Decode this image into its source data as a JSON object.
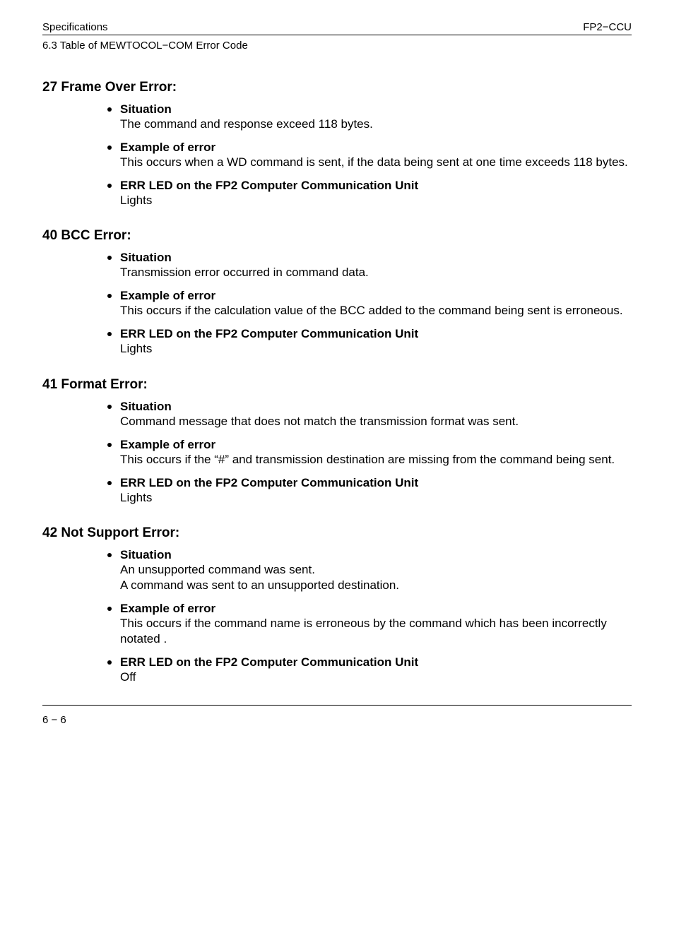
{
  "header": {
    "left": "Specifications",
    "right": "FP2−CCU"
  },
  "subheader": "6.3    Table of MEWTOCOL−COM Error Code",
  "errors": [
    {
      "code": "27",
      "name": "Frame Over Error:",
      "sections": [
        {
          "label": "Situation",
          "body": "The command and response exceed 118 bytes."
        },
        {
          "label": "Example of error",
          "body": "This occurs when a WD command is sent, if the data being sent at one time exceeds 118 bytes."
        },
        {
          "label": "ERR LED on the FP2 Computer Communication Unit",
          "body": "Lights"
        }
      ]
    },
    {
      "code": "40",
      "name": "BCC Error:",
      "sections": [
        {
          "label": "Situation",
          "body": "Transmission error occurred in command data."
        },
        {
          "label": "Example of error",
          "body": "This occurs if the calculation value of the BCC added to the command being sent is erroneous."
        },
        {
          "label": "ERR LED on the FP2 Computer Communication Unit",
          "body": "Lights"
        }
      ]
    },
    {
      "code": "41",
      "name": "Format Error:",
      "sections": [
        {
          "label": "Situation",
          "body": "Command message that does not match the transmission format was sent."
        },
        {
          "label": "Example of error",
          "body": "This occurs if the “#” and transmission destination are missing from the command being sent."
        },
        {
          "label": "ERR LED on the FP2 Computer Communication Unit",
          "body": "Lights"
        }
      ]
    },
    {
      "code": "42",
      "name": "Not Support Error:",
      "sections": [
        {
          "label": "Situation",
          "body": "An unsupported command was sent.\nA command was sent to an unsupported destination."
        },
        {
          "label": "Example of error",
          "body": "This occurs if the command name is erroneous by the command which has been incorrectly notated ."
        },
        {
          "label": "ERR LED on the FP2 Computer Communication Unit",
          "body": "Off"
        }
      ]
    }
  ],
  "footer": "6 − 6"
}
